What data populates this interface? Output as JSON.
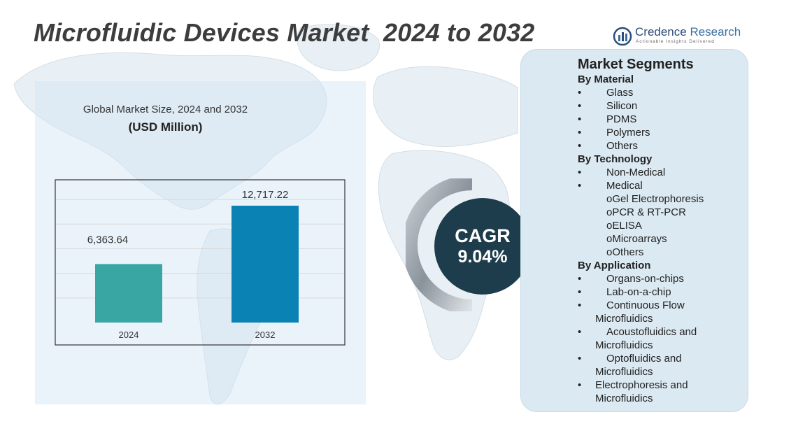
{
  "title": "Microfluidic Devices Market  2024 to 2032",
  "logo": {
    "name_part1": "Credence",
    "name_part2": " Research",
    "tagline": "Actionable Insights Delivered"
  },
  "chart_data": {
    "type": "bar",
    "title": "Global Market Size, 2024 and 2032",
    "unit": "(USD Million)",
    "categories": [
      "2024",
      "2032"
    ],
    "values": [
      6363.64,
      12717.22
    ],
    "value_labels": [
      "6,363.64",
      "12,717.22"
    ],
    "colors": [
      "#3aa6a3",
      "#0a82b4"
    ],
    "ylim": [
      0,
      15000
    ],
    "grid": true,
    "xlabel": "",
    "ylabel": ""
  },
  "cagr": {
    "label": "CAGR",
    "value": "9.04%"
  },
  "segments": {
    "heading": "Market Segments",
    "groups": [
      {
        "name": "By Material",
        "items": [
          {
            "text": "Glass"
          },
          {
            "text": "Silicon"
          },
          {
            "text": "PDMS"
          },
          {
            "text": "Polymers"
          },
          {
            "text": "Others"
          }
        ]
      },
      {
        "name": "By Technology",
        "items": [
          {
            "text": "Non-Medical"
          },
          {
            "text": "Medical"
          }
        ],
        "subitems": [
          "oGel Electrophoresis",
          "oPCR & RT-PCR",
          "oELISA",
          "oMicroarrays",
          "oOthers"
        ]
      },
      {
        "name": "By Application",
        "items": [
          {
            "text": "Organs-on-chips"
          },
          {
            "text": "Lab-on-a-chip"
          },
          {
            "line1": "Continuous Flow",
            "line2": "Microfluidics"
          },
          {
            "line1": "Acoustofluidics and",
            "line2": "Microfluidics"
          },
          {
            "line1": "Optofluidics and",
            "line2": "Microfluidics"
          },
          {
            "line1": "Electrophoresis and",
            "line2": "Microfluidics",
            "tight": true
          }
        ]
      }
    ]
  }
}
